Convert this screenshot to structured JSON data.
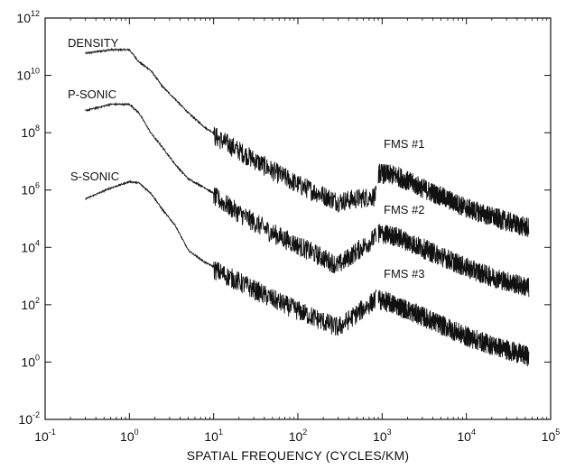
{
  "chart_data": {
    "type": "line",
    "title": "",
    "xlabel": "SPATIAL FREQUENCY (CYCLES/KM)",
    "ylabel": "",
    "xscale": "log",
    "yscale": "log",
    "xlim": [
      0.1,
      100000
    ],
    "ylim": [
      0.01,
      1000000000000
    ],
    "grid": false,
    "x_tick_labels": [
      {
        "base": "10",
        "exp": "-1"
      },
      {
        "base": "10",
        "exp": "0"
      },
      {
        "base": "10",
        "exp": "1"
      },
      {
        "base": "10",
        "exp": "2"
      },
      {
        "base": "10",
        "exp": "3"
      },
      {
        "base": "10",
        "exp": "4"
      },
      {
        "base": "10",
        "exp": "5"
      }
    ],
    "y_tick_labels": [
      {
        "base": "10",
        "exp": "12"
      },
      {
        "base": "10",
        "exp": "10"
      },
      {
        "base": "10",
        "exp": "8"
      },
      {
        "base": "10",
        "exp": "6"
      },
      {
        "base": "10",
        "exp": "4"
      },
      {
        "base": "10",
        "exp": "2"
      },
      {
        "base": "10",
        "exp": "0"
      },
      {
        "base": "10",
        "exp": "-2"
      }
    ],
    "series": [
      {
        "name": "DENSITY",
        "x": [
          0.3,
          0.6,
          1.0,
          1.3,
          1.8,
          2.5,
          3.5,
          5.0,
          8,
          20,
          50,
          100,
          300,
          850
        ],
        "y": [
          60000000000.0,
          80000000000.0,
          80000000000.0,
          30000000000.0,
          15000000000.0,
          4000000000.0,
          1500000000.0,
          500000000.0,
          150000000.0,
          30000000.0,
          6000000.0,
          2000000.0,
          500000.0,
          800000.0
        ]
      },
      {
        "name": "P-SONIC",
        "x": [
          0.3,
          0.6,
          1.0,
          1.3,
          1.8,
          2.5,
          3.5,
          5.0,
          8,
          20,
          50,
          100,
          300,
          850
        ],
        "y": [
          600000000.0,
          1000000000.0,
          1000000000.0,
          500000000.0,
          100000000.0,
          30000000.0,
          8000000.0,
          2500000.0,
          1200000.0,
          200000.0,
          40000.0,
          15000.0,
          3000.0,
          30000.0
        ]
      },
      {
        "name": "S-SONIC",
        "x": [
          0.3,
          0.6,
          1.0,
          1.3,
          1.8,
          2.5,
          3.5,
          5.0,
          8,
          20,
          50,
          100,
          300,
          850
        ],
        "y": [
          500000.0,
          1200000.0,
          2000000.0,
          1800000.0,
          800000.0,
          200000.0,
          60000.0,
          8000.0,
          3000.0,
          800.0,
          200.0,
          80,
          20,
          200
        ]
      },
      {
        "name": "FMS #1",
        "x": [
          900,
          1500,
          3000,
          6000,
          10000,
          20000,
          55000
        ],
        "y": [
          5000000.0,
          4000000.0,
          1500000.0,
          600000.0,
          300000.0,
          150000.0,
          60000.0
        ]
      },
      {
        "name": "FMS #2",
        "x": [
          900,
          1500,
          3000,
          6000,
          10000,
          20000,
          55000
        ],
        "y": [
          40000.0,
          30000.0,
          12000.0,
          5000.0,
          2500.0,
          1200.0,
          500.0
        ]
      },
      {
        "name": "FMS #3",
        "x": [
          900,
          1500,
          3000,
          6000,
          10000,
          20000,
          55000
        ],
        "y": [
          200,
          120,
          50,
          20,
          10,
          5,
          2
        ]
      }
    ]
  }
}
